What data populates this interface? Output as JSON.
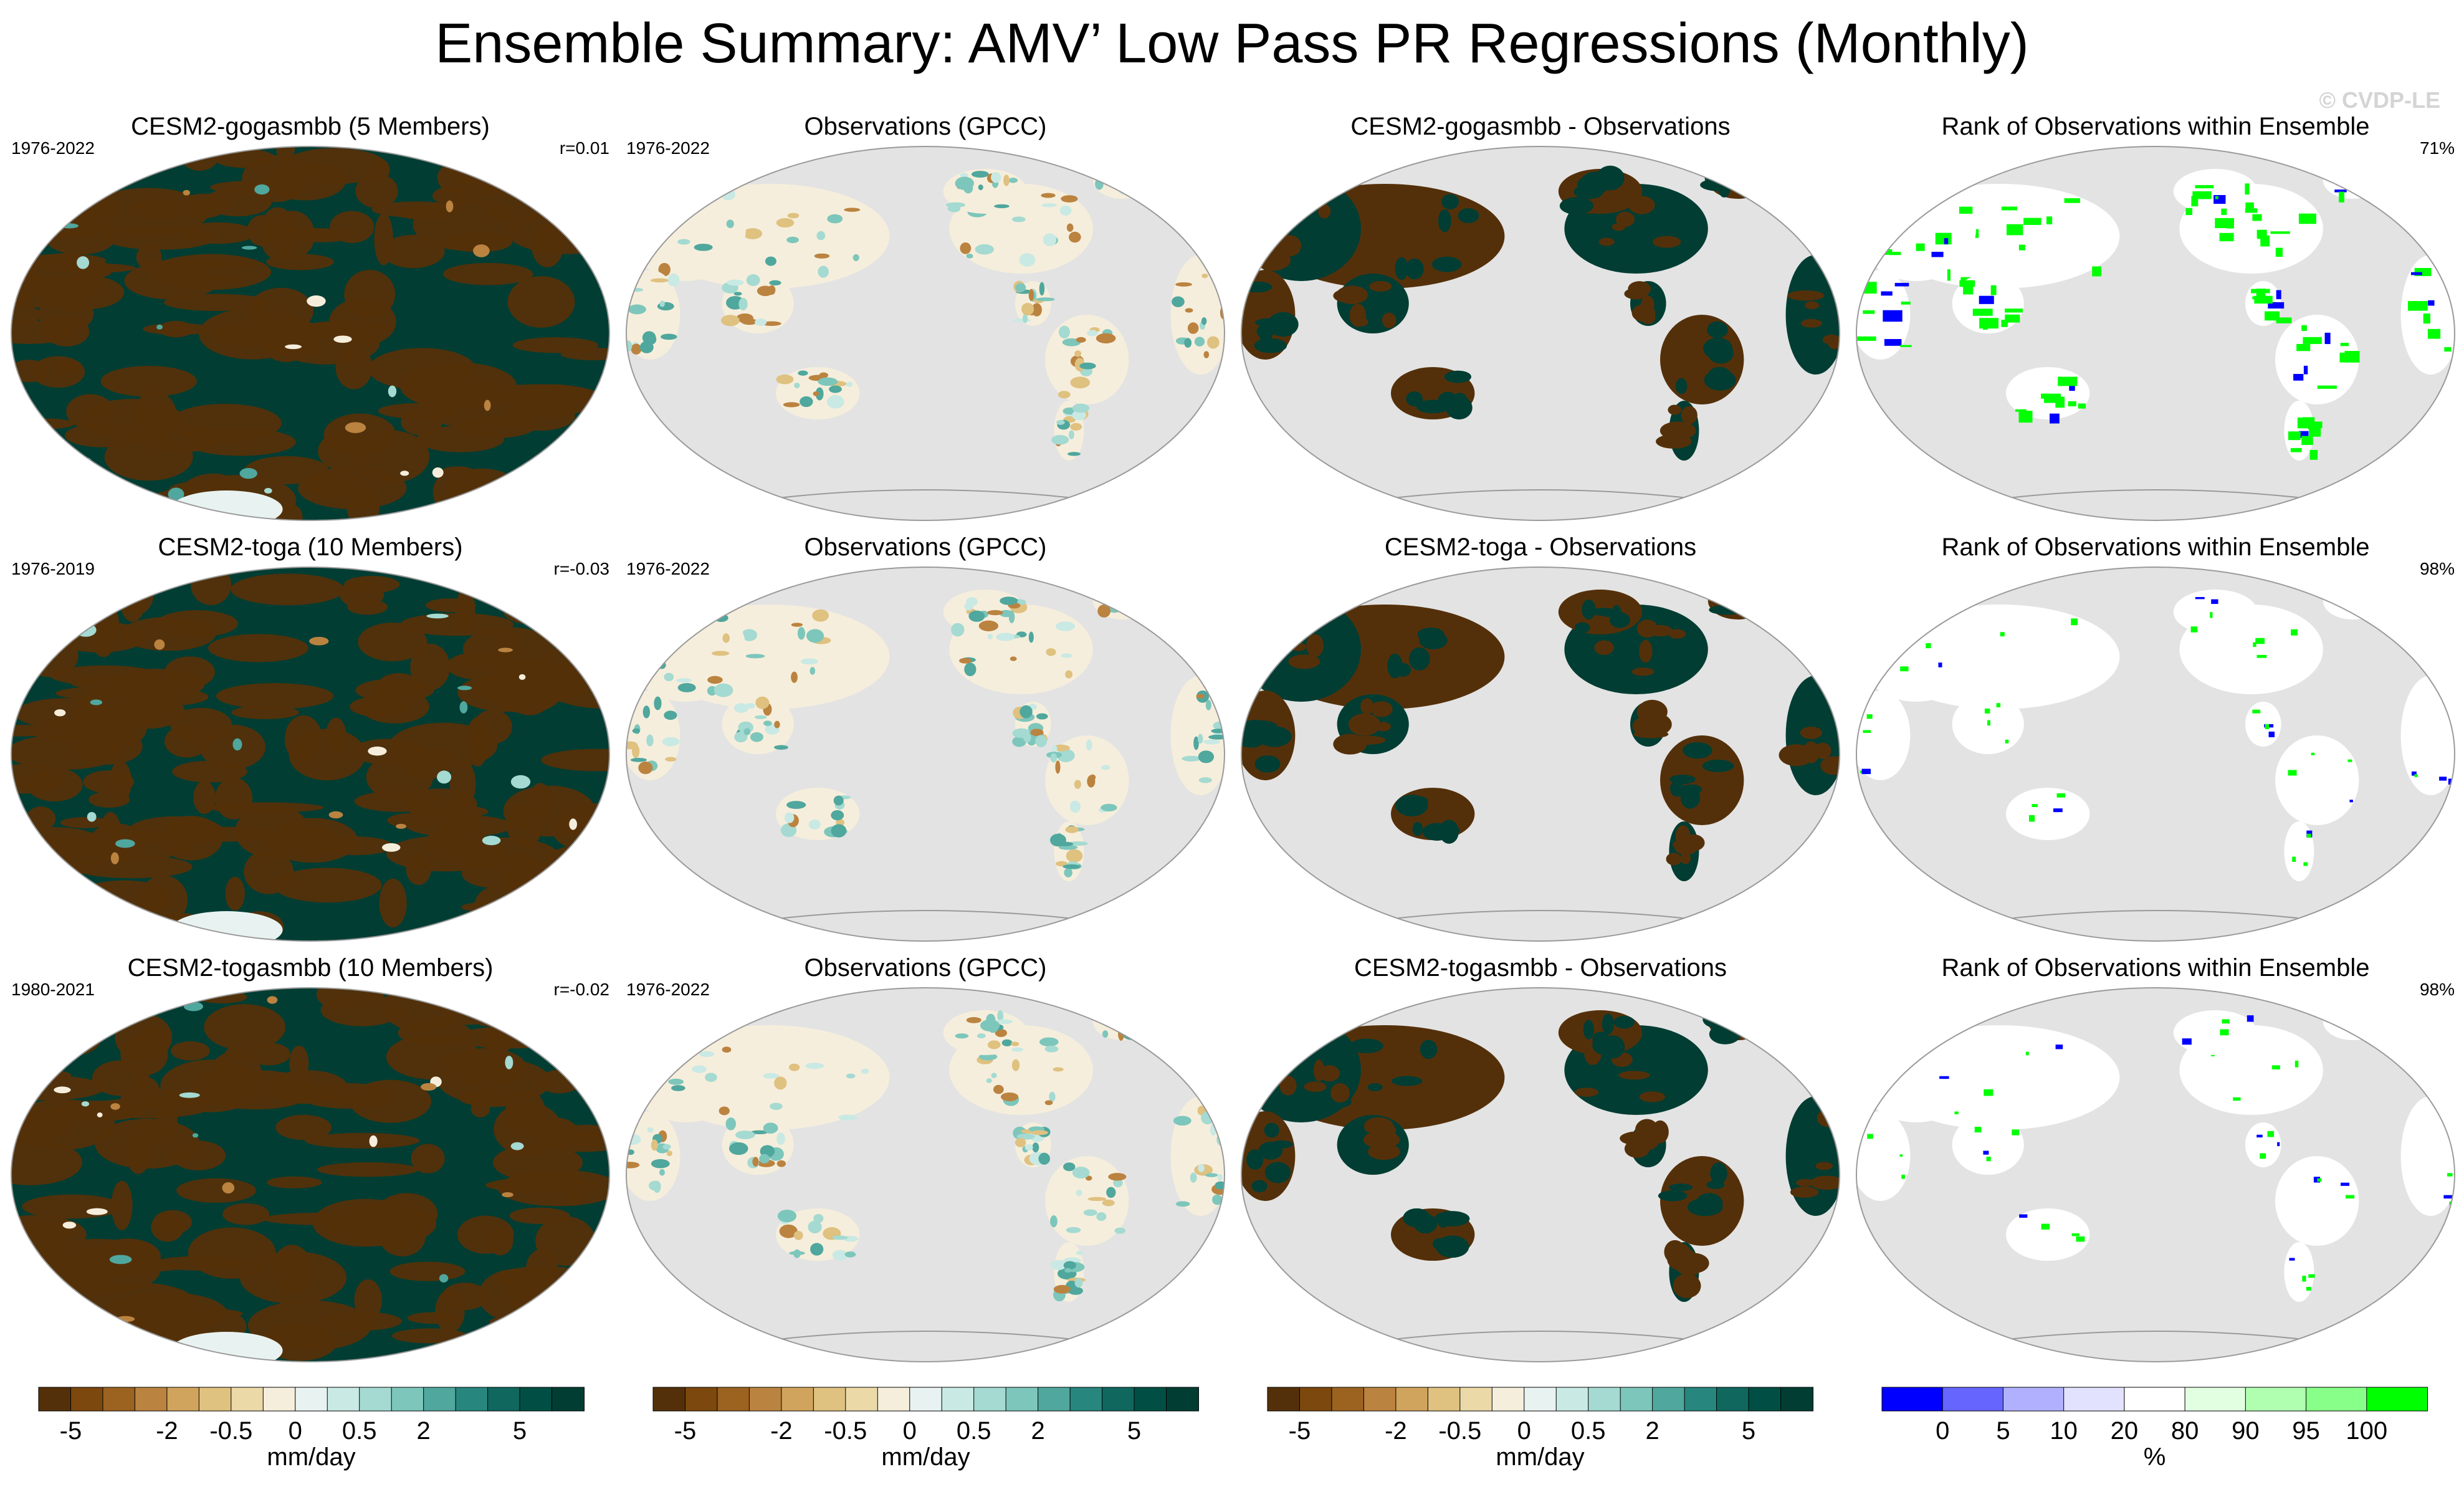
{
  "title": "Ensemble Summary: AMV’ Low Pass PR Regressions (Monthly)",
  "watermark": "© CVDP-LE",
  "colors": {
    "ocean_land_gray": "#e3e3e3",
    "brown_dark": "#54300a",
    "teal_dark": "#013d33"
  },
  "rows": [
    {
      "panels": [
        {
          "title": "CESM2-gogasmbb (5 Members)",
          "left": "1976-2022",
          "right": "r=0.01",
          "kind": "model"
        },
        {
          "title": "Observations (GPCC)",
          "left": "1976-2022",
          "right": "",
          "kind": "obs"
        },
        {
          "title": "CESM2-gogasmbb - Observations",
          "left": "",
          "right": "",
          "kind": "diff"
        },
        {
          "title": "Rank of Observations within Ensemble",
          "left": "",
          "right": "71%",
          "kind": "rank"
        }
      ]
    },
    {
      "panels": [
        {
          "title": "CESM2-toga (10 Members)",
          "left": "1976-2019",
          "right": "r=-0.03",
          "kind": "model"
        },
        {
          "title": "Observations (GPCC)",
          "left": "1976-2022",
          "right": "",
          "kind": "obs"
        },
        {
          "title": "CESM2-toga - Observations",
          "left": "",
          "right": "",
          "kind": "diff"
        },
        {
          "title": "Rank of Observations within Ensemble",
          "left": "",
          "right": "98%",
          "kind": "rank"
        }
      ]
    },
    {
      "panels": [
        {
          "title": "CESM2-togasmbb (10 Members)",
          "left": "1980-2021",
          "right": "r=-0.02",
          "kind": "model"
        },
        {
          "title": "Observations (GPCC)",
          "left": "1976-2022",
          "right": "",
          "kind": "obs"
        },
        {
          "title": "CESM2-togasmbb - Observations",
          "left": "",
          "right": "",
          "kind": "diff"
        },
        {
          "title": "Rank of Observations within Ensemble",
          "left": "",
          "right": "98%",
          "kind": "rank"
        }
      ]
    }
  ],
  "chart_data": [
    {
      "type": "heatmap",
      "name": "precipitation regression colorbar",
      "unit_label": "mm/day",
      "levels": [
        -5,
        -4,
        -3,
        -2,
        -1,
        -0.5,
        -0.25,
        0,
        0.25,
        0.5,
        1,
        2,
        3,
        4,
        5
      ],
      "tick_labels": [
        "-5",
        "-2",
        "-0.5",
        "0",
        "0.5",
        "2",
        "5"
      ],
      "tick_values": [
        -5,
        -2,
        -0.5,
        0,
        0.5,
        2,
        5
      ],
      "colors": [
        "#54300a",
        "#7c480d",
        "#9b6220",
        "#bb8340",
        "#d0a45c",
        "#dfc180",
        "#ebd9a8",
        "#f6eedc",
        "#e8f3f1",
        "#c9e9e4",
        "#a4dad1",
        "#7dc6bb",
        "#4fa79d",
        "#27867e",
        "#0f675e",
        "#014f44",
        "#013d33"
      ]
    },
    {
      "type": "heatmap",
      "name": "rank colorbar",
      "unit_label": "%",
      "levels": [
        0,
        5,
        10,
        20,
        80,
        90,
        95,
        100
      ],
      "tick_labels": [
        "0",
        "5",
        "10",
        "20",
        "80",
        "90",
        "95",
        "100"
      ],
      "tick_values": [
        0,
        5,
        10,
        20,
        80,
        90,
        95,
        100
      ],
      "colors": [
        "#0000ff",
        "#6666ff",
        "#b0b0ff",
        "#e2e2ff",
        "#ffffff",
        "#e2ffe2",
        "#b0ffb0",
        "#88ff88",
        "#00ff00"
      ]
    }
  ]
}
